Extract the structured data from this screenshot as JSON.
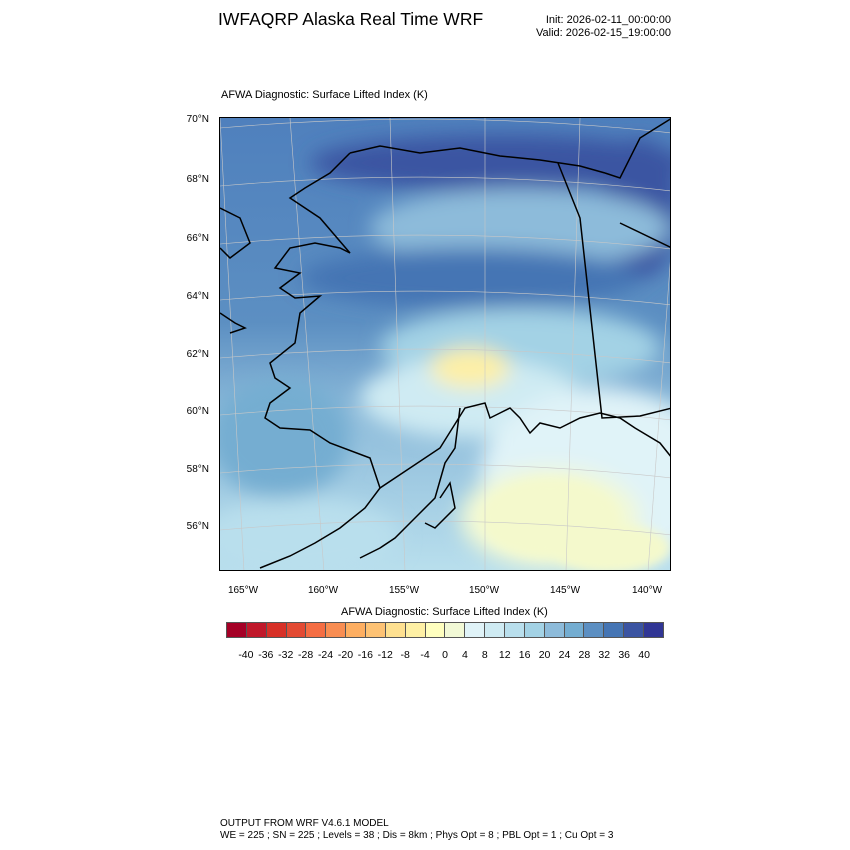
{
  "header": {
    "title": "IWFAQRP Alaska Real Time WRF",
    "init": "Init: 2026-02-11_00:00:00",
    "valid": "Valid: 2026-02-15_19:00:00"
  },
  "plot": {
    "subtitle": "AFWA Diagnostic: Surface Lifted Index   (K)",
    "lat_labels": [
      "70°N",
      "68°N",
      "66°N",
      "64°N",
      "62°N",
      "60°N",
      "58°N",
      "56°N"
    ],
    "lon_labels": [
      "165°W",
      "160°W",
      "155°W",
      "150°W",
      "145°W",
      "140°W"
    ]
  },
  "colorbar": {
    "title": "AFWA Diagnostic: Surface Lifted Index  (K)",
    "labels": [
      "-40",
      "-36",
      "-32",
      "-28",
      "-24",
      "-20",
      "-16",
      "-12",
      "-8",
      "-4",
      "0",
      "4",
      "8",
      "12",
      "16",
      "20",
      "24",
      "28",
      "32",
      "36",
      "40"
    ],
    "colors": [
      "#a50026",
      "#c0182a",
      "#d73027",
      "#e34a33",
      "#f46d43",
      "#f88d52",
      "#fdae61",
      "#fdc274",
      "#fee090",
      "#fef0a5",
      "#ffffbf",
      "#f2f9d6",
      "#e0f3f8",
      "#cfebf3",
      "#b9dfed",
      "#a3d2e5",
      "#8dbbda",
      "#74add1",
      "#5c8fc2",
      "#4575b4",
      "#3b54a2",
      "#313695"
    ]
  },
  "footer": {
    "line1": "OUTPUT FROM WRF V4.6.1 MODEL",
    "line2": "WE = 225 ; SN = 225 ; Levels = 38 ; Dis = 8km ; Phys Opt = 8 ; PBL Opt = 1 ; Cu Opt = 3"
  }
}
